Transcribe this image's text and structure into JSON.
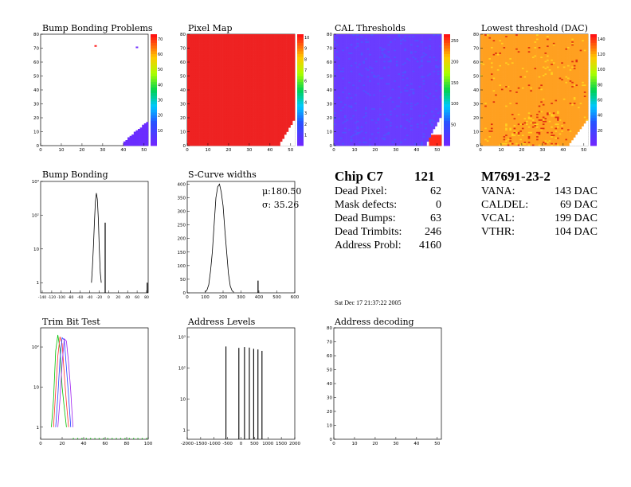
{
  "panels": {
    "bump_problems": {
      "title": "Bump Bonding Problems"
    },
    "pixel_map": {
      "title": "Pixel Map"
    },
    "cal_thresholds": {
      "title": "CAL Thresholds"
    },
    "lowest_threshold": {
      "title": "Lowest threshold (DAC)"
    },
    "bump_bonding": {
      "title": "Bump Bonding"
    },
    "scurve": {
      "title": "S-Curve widths",
      "mu": "μ:180.50",
      "sigma": "σ: 35.26"
    },
    "trim_bit": {
      "title": "Trim Bit Test"
    },
    "address_levels": {
      "title": "Address Levels"
    },
    "address_decoding": {
      "title": "Address decoding"
    }
  },
  "summary": {
    "chip_label": "Chip C7",
    "chip_number": "121",
    "module": "M7691-23-2",
    "stats": [
      {
        "label": "Dead Pixel:",
        "value": "62"
      },
      {
        "label": "Mask defects:",
        "value": "0"
      },
      {
        "label": "Dead Bumps:",
        "value": "63"
      },
      {
        "label": "Dead Trimbits:",
        "value": "246"
      },
      {
        "label": "Address Probl:",
        "value": "4160"
      }
    ],
    "dacs": [
      {
        "label": "VANA:",
        "value": "143 DAC"
      },
      {
        "label": "CALDEL:",
        "value": "69 DAC"
      },
      {
        "label": "VCAL:",
        "value": "199 DAC"
      },
      {
        "label": "VTHR:",
        "value": "104 DAC"
      }
    ]
  },
  "timestamp": "Sat Dec 17 21:37:22 2005",
  "chart_data": [
    {
      "id": "bump_problems",
      "type": "heatmap",
      "title": "Bump Bonding Problems",
      "xlim": [
        0,
        52
      ],
      "ylim": [
        0,
        80
      ],
      "x_ticks": [
        "0",
        "10",
        "20",
        "30",
        "40",
        "50"
      ],
      "y_ticks": [
        "0",
        "10",
        "20",
        "30",
        "40",
        "50",
        "60",
        "70",
        "80"
      ],
      "z_ticks": [
        "10",
        "20",
        "30",
        "40",
        "50",
        "60",
        "70"
      ],
      "points": [
        {
          "x": 26,
          "y": 71,
          "color": "#ff2020"
        },
        {
          "x": 46,
          "y": 70,
          "color": "#7030ff"
        }
      ],
      "corner": {
        "description": "purple triangle lower-right",
        "color": "#6b2cff",
        "rows_from": 0,
        "rows_to": 12
      }
    },
    {
      "id": "pixel_map",
      "type": "heatmap",
      "title": "Pixel Map",
      "xlim": [
        0,
        52
      ],
      "ylim": [
        0,
        80
      ],
      "x_ticks": [
        "0",
        "10",
        "20",
        "30",
        "40",
        "50"
      ],
      "y_ticks": [
        "0",
        "10",
        "20",
        "30",
        "40",
        "50",
        "60",
        "70",
        "80"
      ],
      "z_ticks": [
        "1",
        "2",
        "3",
        "4",
        "5",
        "6",
        "7",
        "8",
        "9",
        "10"
      ],
      "fill_color": "#ee2222"
    },
    {
      "id": "cal_thresholds",
      "type": "heatmap",
      "title": "CAL Thresholds",
      "xlim": [
        0,
        52
      ],
      "ylim": [
        0,
        80
      ],
      "x_ticks": [
        "0",
        "10",
        "20",
        "30",
        "40",
        "50"
      ],
      "y_ticks": [
        "0",
        "10",
        "20",
        "30",
        "40",
        "50",
        "60",
        "70",
        "80"
      ],
      "z_ticks": [
        "50",
        "100",
        "150",
        "200",
        "250"
      ],
      "fill_color": "#6a3cff",
      "corner_color": "#ff2a1a"
    },
    {
      "id": "lowest_threshold",
      "type": "heatmap",
      "title": "Lowest threshold (DAC)",
      "xlim": [
        0,
        52
      ],
      "ylim": [
        0,
        80
      ],
      "x_ticks": [
        "0",
        "10",
        "20",
        "30",
        "40",
        "50"
      ],
      "y_ticks": [
        "0",
        "10",
        "20",
        "30",
        "40",
        "50",
        "60",
        "70",
        "80"
      ],
      "z_ticks": [
        "20",
        "40",
        "60",
        "80",
        "100",
        "120",
        "140"
      ],
      "fill_color": "#ffa020"
    },
    {
      "id": "bump_bonding",
      "type": "line",
      "title": "Bump Bonding",
      "xlim": [
        -140,
        80
      ],
      "ylim_log": [
        0.5,
        1000
      ],
      "x_ticks": [
        "-140",
        "-120",
        "-100",
        "-80",
        "-60",
        "-40",
        "-20",
        "0",
        "20",
        "40",
        "60",
        "80"
      ],
      "y_ticks": [
        "1",
        "10",
        "10²",
        "10³"
      ],
      "x": [
        -36,
        -34,
        -32,
        -30,
        -28,
        -26,
        -24,
        -22,
        -20,
        -18,
        -16
      ],
      "y": [
        1,
        3,
        12,
        60,
        250,
        450,
        300,
        80,
        10,
        2,
        1
      ],
      "spikes": [
        {
          "x": -8,
          "y": 60
        },
        {
          "x": 78,
          "y": 1
        }
      ]
    },
    {
      "id": "scurve",
      "type": "line",
      "title": "S-Curve widths",
      "xlim": [
        0,
        600
      ],
      "ylim": [
        0,
        410
      ],
      "x_ticks": [
        "0",
        "100",
        "200",
        "300",
        "400",
        "500",
        "600"
      ],
      "y_ticks": [
        "0",
        "50",
        "100",
        "150",
        "200",
        "250",
        "300",
        "350",
        "400"
      ],
      "x": [
        100,
        110,
        120,
        130,
        140,
        150,
        160,
        170,
        180,
        190,
        200,
        210,
        220,
        230,
        240,
        250,
        260
      ],
      "y": [
        3,
        10,
        30,
        80,
        150,
        250,
        350,
        390,
        400,
        370,
        320,
        230,
        150,
        70,
        25,
        8,
        2
      ],
      "spikes": [
        {
          "x": 395,
          "y": 45
        }
      ]
    },
    {
      "id": "trim_bit",
      "type": "line",
      "title": "Trim Bit Test",
      "xlim": [
        0,
        100
      ],
      "ylim_log": [
        0.5,
        300
      ],
      "x_ticks": [
        "0",
        "20",
        "40",
        "60",
        "80",
        "100"
      ],
      "y_ticks": [
        "1",
        "10",
        "10²"
      ],
      "series": [
        {
          "name": "",
          "color": "#00c000",
          "x": [
            10,
            12,
            14,
            16,
            18,
            20,
            22,
            24
          ],
          "y": [
            1,
            5,
            80,
            200,
            90,
            10,
            3,
            1
          ]
        },
        {
          "name": "",
          "color": "#ff3030",
          "x": [
            12,
            14,
            16,
            18,
            20,
            22,
            24,
            26
          ],
          "y": [
            1,
            8,
            60,
            180,
            120,
            20,
            4,
            1
          ]
        },
        {
          "name": "",
          "color": "#2040ff",
          "x": [
            14,
            16,
            18,
            20,
            22,
            24,
            26,
            28
          ],
          "y": [
            1,
            6,
            50,
            170,
            150,
            30,
            6,
            1
          ]
        },
        {
          "name": "",
          "color": "#a020f0",
          "x": [
            16,
            18,
            20,
            22,
            24,
            26,
            28,
            30
          ],
          "y": [
            1,
            5,
            40,
            160,
            140,
            40,
            8,
            1
          ]
        }
      ]
    },
    {
      "id": "address_levels",
      "type": "bar",
      "title": "Address Levels",
      "xlim": [
        -2000,
        2000
      ],
      "ylim_log": [
        0.5,
        2000
      ],
      "x_ticks": [
        "-2000",
        "-1500",
        "-1000",
        "-500",
        "0",
        "500",
        "1000",
        "1500",
        "2000"
      ],
      "y_ticks": [
        "1",
        "10",
        "10²",
        "10³"
      ],
      "x": [
        -560,
        -80,
        130,
        310,
        470,
        630,
        780
      ],
      "values": [
        500,
        450,
        480,
        460,
        420,
        400,
        360
      ]
    },
    {
      "id": "address_decoding",
      "type": "heatmap",
      "title": "Address decoding",
      "xlim": [
        0,
        52
      ],
      "ylim": [
        0,
        80
      ],
      "x_ticks": [
        "0",
        "10",
        "20",
        "30",
        "40",
        "50"
      ],
      "y_ticks": [
        "0",
        "10",
        "20",
        "30",
        "40",
        "50",
        "60",
        "70",
        "80"
      ]
    }
  ]
}
